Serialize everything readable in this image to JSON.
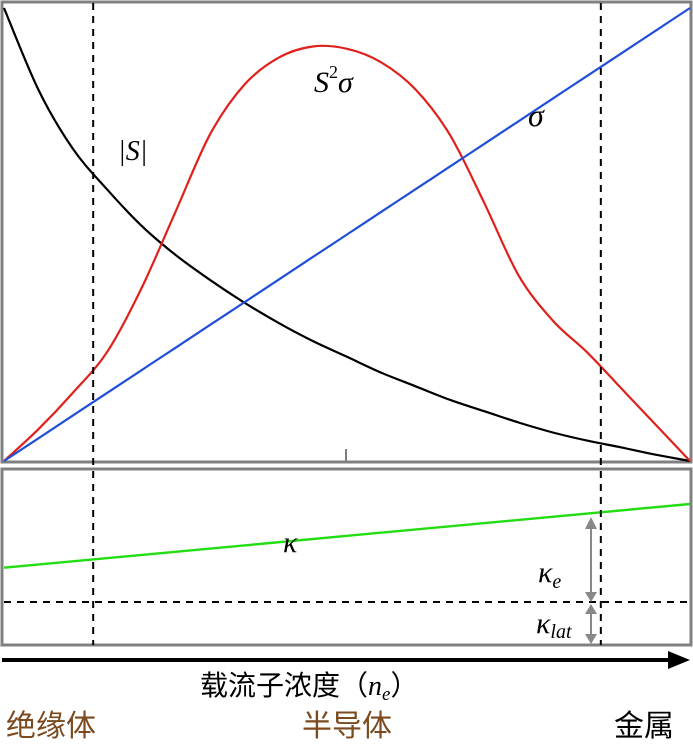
{
  "chart_data": {
    "type": "line",
    "x_axis_title": "载流子浓度（",
    "x_axis_symbol": "n",
    "x_axis_symbol_sub": "e",
    "x_axis_close": "）",
    "regions": [
      {
        "label": "绝缘体",
        "color": "#7b4a1e"
      },
      {
        "label": "半导体",
        "color": "#7b4a1e"
      },
      {
        "label": "金属",
        "color": "#000000"
      }
    ],
    "top_panel": {
      "x": [
        0,
        0.05,
        0.1,
        0.15,
        0.2,
        0.25,
        0.3,
        0.35,
        0.4,
        0.45,
        0.5,
        0.55,
        0.6,
        0.65,
        0.7,
        0.75,
        0.8,
        0.85,
        0.9,
        0.95,
        1.0
      ],
      "series": [
        {
          "name": "|S|",
          "color": "#000000",
          "values": [
            1.0,
            0.82,
            0.69,
            0.6,
            0.52,
            0.455,
            0.4,
            0.35,
            0.305,
            0.265,
            0.23,
            0.195,
            0.165,
            0.135,
            0.11,
            0.085,
            0.063,
            0.045,
            0.03,
            0.014,
            0.0
          ]
        },
        {
          "name": "S²σ",
          "color": "#e0201b",
          "values": [
            0.0,
            0.07,
            0.15,
            0.24,
            0.38,
            0.55,
            0.72,
            0.83,
            0.89,
            0.915,
            0.91,
            0.88,
            0.82,
            0.72,
            0.57,
            0.41,
            0.31,
            0.24,
            0.16,
            0.08,
            0.0
          ]
        },
        {
          "name": "σ",
          "color": "#1f4fd8",
          "values": [
            0.0,
            0.05,
            0.1,
            0.15,
            0.2,
            0.25,
            0.3,
            0.35,
            0.4,
            0.45,
            0.5,
            0.55,
            0.6,
            0.65,
            0.7,
            0.75,
            0.8,
            0.85,
            0.9,
            0.95,
            1.0
          ]
        }
      ],
      "labels": {
        "S": "|S|",
        "S2": "S",
        "S2_sup": "2",
        "S2_sigma": "σ",
        "sigma": "σ"
      }
    },
    "bottom_panel": {
      "series": [
        {
          "name": "κ",
          "color": "#22dd11",
          "values": [
            0.35,
            1.0
          ]
        }
      ],
      "lattice_level": 0.0,
      "labels": {
        "kappa": "κ",
        "kappa_e": "κ",
        "kappa_e_sub": "e",
        "kappa_lat": "κ",
        "kappa_lat_sub": "lat"
      }
    },
    "vertical_boundaries": [
      0.13,
      0.87
    ],
    "grid": false
  }
}
